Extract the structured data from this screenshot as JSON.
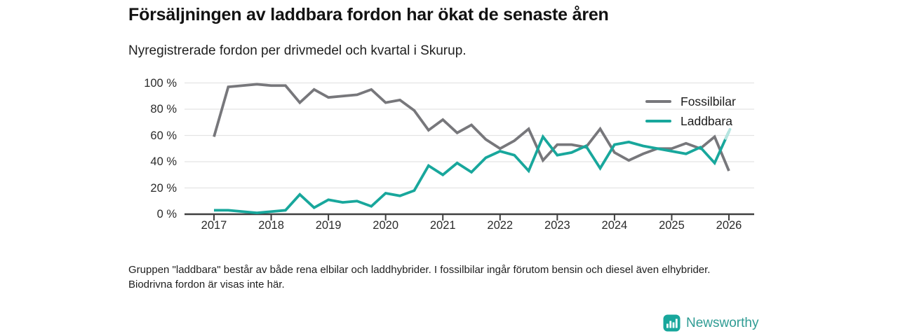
{
  "title": "Försäljningen av laddbara fordon har ökat de senaste åren",
  "subtitle": "Nyregistrerade fordon per drivmedel och kvartal i Skurup.",
  "footnote": "Gruppen \"laddbara\" består av både rena elbilar och laddhybrider. I fossilbilar ingår förutom bensin och diesel även elhybrider. Biodrivna fordon är visas inte här.",
  "brand": {
    "name": "Newsworthy",
    "icon": "bar-chart-icon",
    "color": "#18a79c",
    "text_color": "#2f9c94"
  },
  "chart_data": {
    "type": "line",
    "title": "Försäljningen av laddbara fordon har ökat de senaste åren",
    "subtitle": "Nyregistrerade fordon per drivmedel och kvartal i Skurup.",
    "unit": "%",
    "grid": "horizontal",
    "legend_position": "top-right",
    "ylim": [
      0,
      100
    ],
    "y_ticks": [
      0,
      20,
      40,
      60,
      80,
      100
    ],
    "y_tick_suffix": " %",
    "x_tick_labels": [
      "2017",
      "2018",
      "2019",
      "2020",
      "2021",
      "2022",
      "2023",
      "2024",
      "2025",
      "2026"
    ],
    "quarters": [
      "2017 Q1",
      "2017 Q2",
      "2017 Q3",
      "2017 Q4",
      "2018 Q1",
      "2018 Q2",
      "2018 Q3",
      "2018 Q4",
      "2019 Q1",
      "2019 Q2",
      "2019 Q3",
      "2019 Q4",
      "2020 Q1",
      "2020 Q2",
      "2020 Q3",
      "2020 Q4",
      "2021 Q1",
      "2021 Q2",
      "2021 Q3",
      "2021 Q4",
      "2022 Q1",
      "2022 Q2",
      "2022 Q3",
      "2022 Q4",
      "2023 Q1",
      "2023 Q2",
      "2023 Q3",
      "2023 Q4",
      "2024 Q1",
      "2024 Q2",
      "2024 Q3",
      "2024 Q4",
      "2025 Q1",
      "2025 Q2",
      "2025 Q3",
      "2025 Q4",
      "2026 Q1"
    ],
    "series": [
      {
        "name": "Fossilbilar",
        "color": "#77777b",
        "values": [
          59,
          97,
          98,
          99,
          98,
          98,
          85,
          95,
          89,
          90,
          91,
          95,
          85,
          87,
          79,
          64,
          72,
          62,
          68,
          57,
          50,
          56,
          65,
          41,
          53,
          53,
          51,
          65,
          47,
          41,
          46,
          50,
          50,
          54,
          50,
          59,
          33
        ]
      },
      {
        "name": "Laddbara",
        "color": "#18a79c",
        "preliminary_tip_color": "#b5e5e0",
        "values": [
          3,
          3,
          2,
          1,
          2,
          3,
          15,
          5,
          11,
          9,
          10,
          6,
          16,
          14,
          18,
          37,
          30,
          39,
          32,
          43,
          48,
          45,
          33,
          59,
          45,
          47,
          52,
          35,
          53,
          55,
          52,
          50,
          48,
          46,
          51,
          39,
          63
        ]
      }
    ],
    "axis_color": "#3f3f3f",
    "gridline_color": "#e4e4e4"
  }
}
